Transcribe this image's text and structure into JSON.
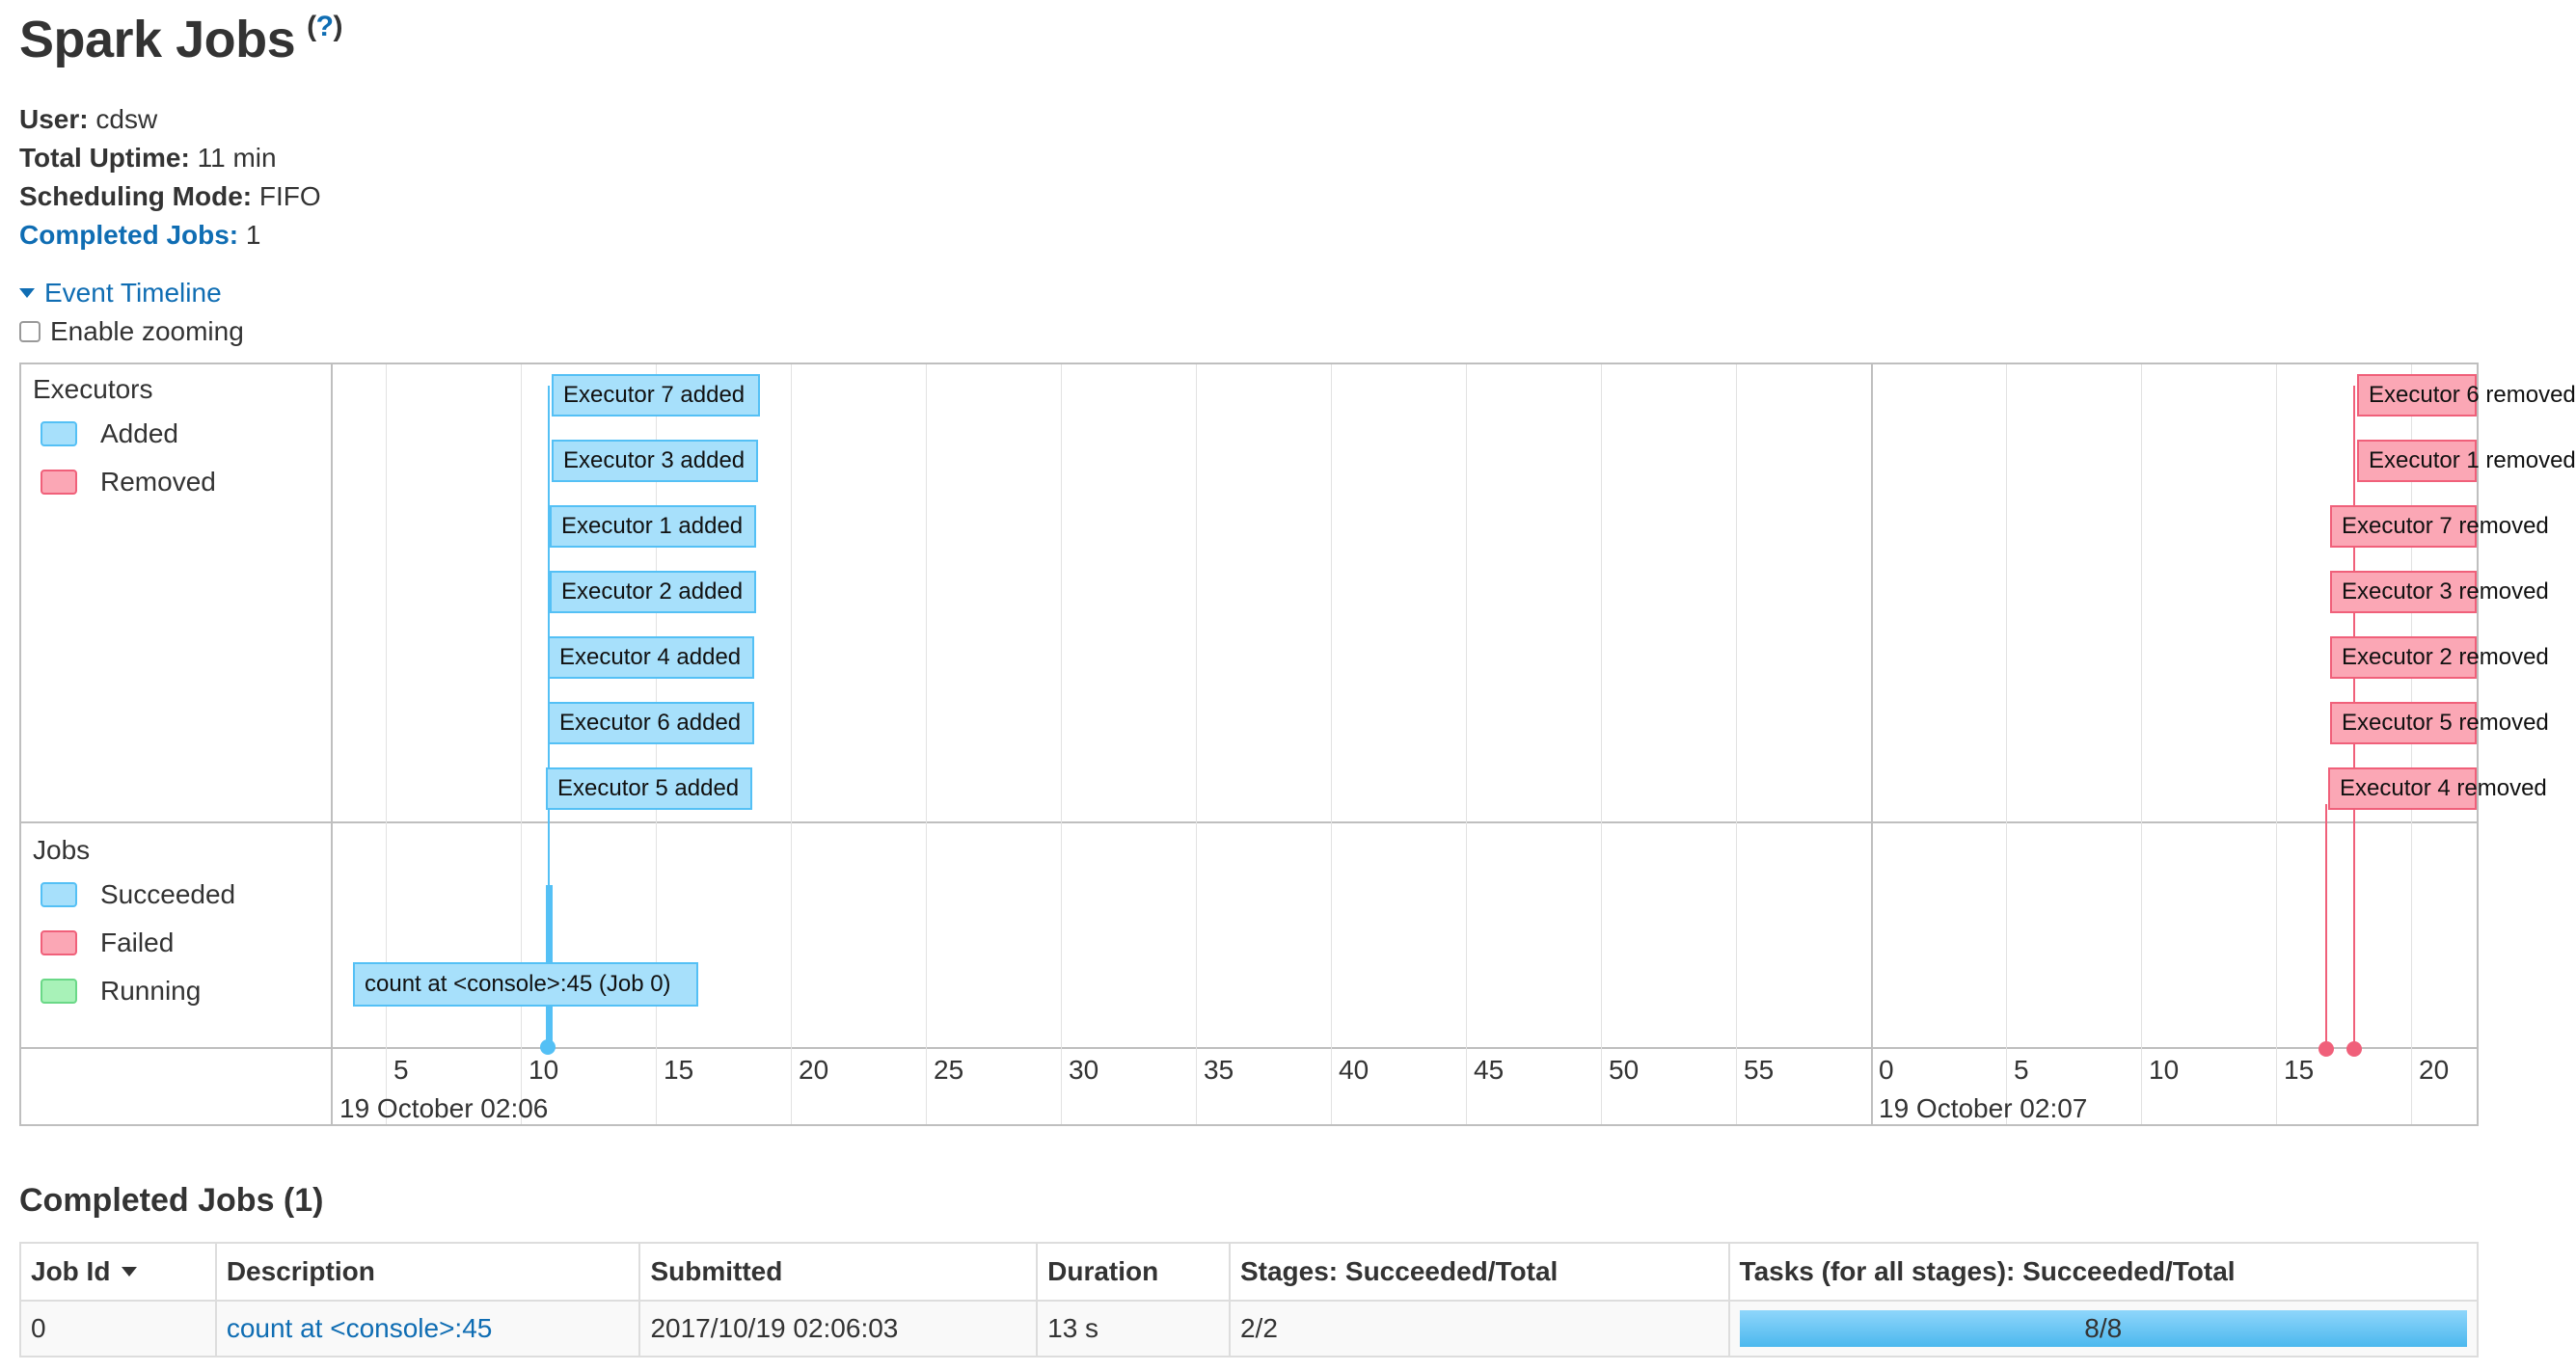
{
  "header": {
    "title": "Spark Jobs",
    "help_label": "?"
  },
  "summary": {
    "user_label": "User:",
    "user_value": "cdsw",
    "uptime_label": "Total Uptime:",
    "uptime_value": "11 min",
    "scheduling_label": "Scheduling Mode:",
    "scheduling_value": "FIFO",
    "completed_label": "Completed Jobs:",
    "completed_value": "1"
  },
  "timeline": {
    "toggle_label": "Event Timeline",
    "zoom_label": "Enable zooming",
    "zoom_checked": false,
    "executors_group": {
      "label": "Executors",
      "legend": [
        {
          "label": "Added"
        },
        {
          "label": "Removed"
        }
      ],
      "added_events": [
        {
          "label": "Executor 7 added"
        },
        {
          "label": "Executor 3 added"
        },
        {
          "label": "Executor 1 added"
        },
        {
          "label": "Executor 2 added"
        },
        {
          "label": "Executor 4 added"
        },
        {
          "label": "Executor 6 added"
        },
        {
          "label": "Executor 5 added"
        }
      ],
      "removed_events": [
        {
          "label": "Executor 6 removed"
        },
        {
          "label": "Executor 1 removed"
        },
        {
          "label": "Executor 7 removed"
        },
        {
          "label": "Executor 3 removed"
        },
        {
          "label": "Executor 2 removed"
        },
        {
          "label": "Executor 5 removed"
        },
        {
          "label": "Executor 4 removed"
        }
      ]
    },
    "jobs_group": {
      "label": "Jobs",
      "legend": [
        {
          "label": "Succeeded"
        },
        {
          "label": "Failed"
        },
        {
          "label": "Running"
        }
      ],
      "job_events": [
        {
          "label": "count at <console>:45 (Job 0)"
        }
      ]
    },
    "axis_ticks_1": [
      "5",
      "10",
      "15",
      "20",
      "25",
      "30",
      "35",
      "40",
      "45",
      "50",
      "55"
    ],
    "axis_ticks_2": [
      "0",
      "5",
      "10",
      "15",
      "20"
    ],
    "date_label_1": "19 October 02:06",
    "date_label_2": "19 October 02:07"
  },
  "completed_jobs": {
    "section_title": "Completed Jobs (1)",
    "columns": [
      "Job Id",
      "Description",
      "Submitted",
      "Duration",
      "Stages: Succeeded/Total",
      "Tasks (for all stages): Succeeded/Total"
    ],
    "sorted_column": "Job Id",
    "rows": [
      {
        "job_id": "0",
        "description": "count at <console>:45",
        "submitted": "2017/10/19 02:06:03",
        "duration": "13 s",
        "stages": "2/2",
        "tasks": "8/8",
        "tasks_fraction": 1.0
      }
    ]
  },
  "colors": {
    "link": "#0f6db3",
    "added_fill": "#a7e0fb",
    "added_border": "#54c0f5",
    "removed_fill": "#fba7b5",
    "removed_border": "#f0607a",
    "running_fill": "#a8f2b8"
  }
}
